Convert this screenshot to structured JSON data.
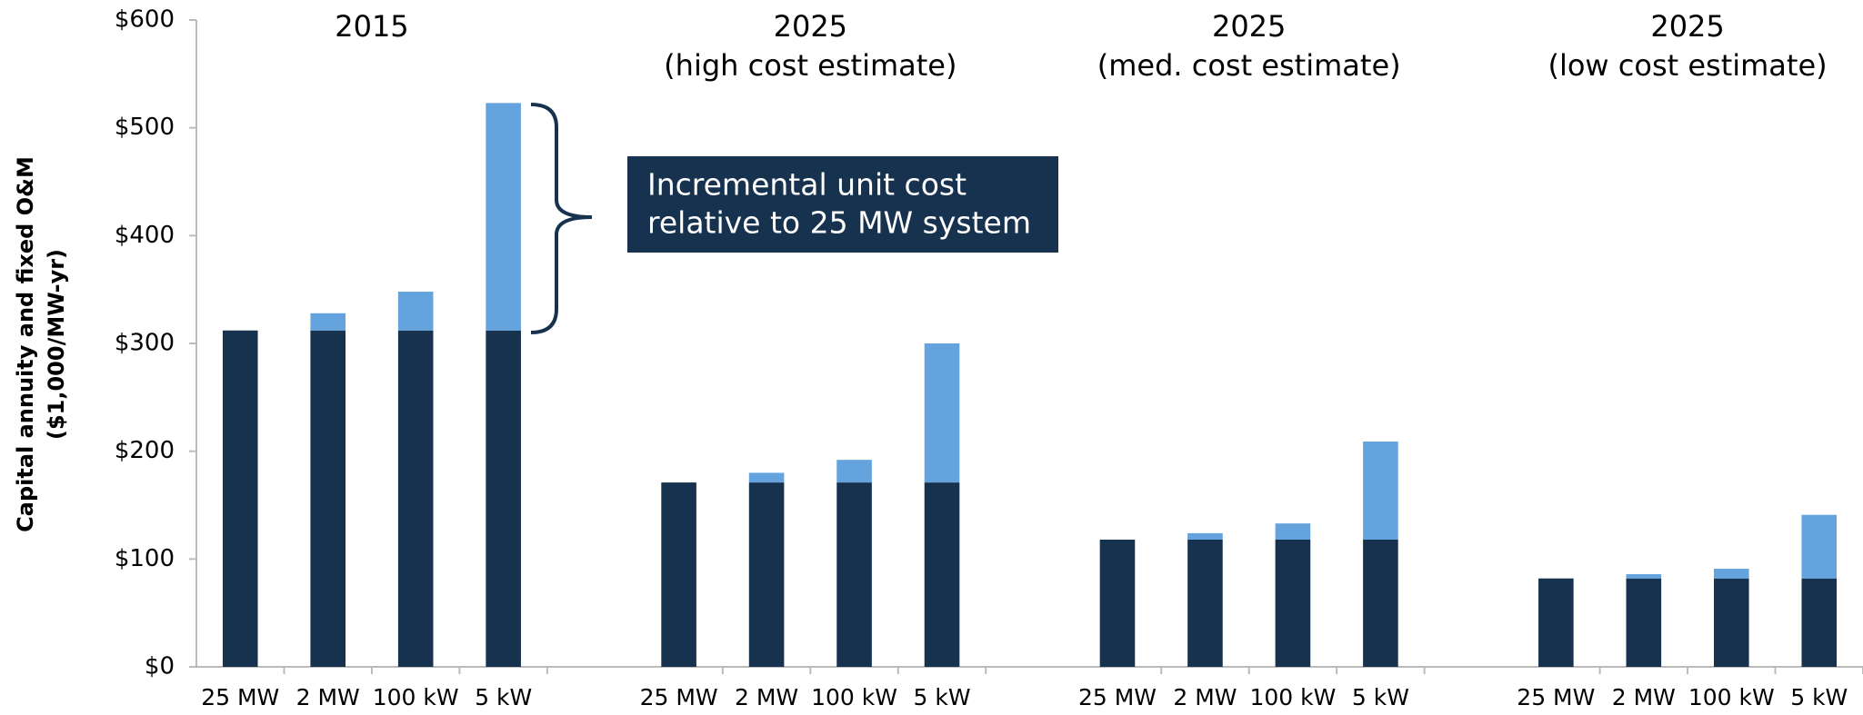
{
  "chart_data": {
    "type": "stacked_bar",
    "ylabel": [
      "Capital annuity and fixed O&M",
      "($1,000/MW-yr)"
    ],
    "groups": [
      {
        "title": [
          "2015"
        ],
        "categories": [
          "25 MW",
          "2 MW",
          "100 kW",
          "5 kW"
        ]
      },
      {
        "title": [
          "2025",
          "(high cost estimate)"
        ],
        "categories": [
          "25 MW",
          "2 MW",
          "100 kW",
          "5 kW"
        ]
      },
      {
        "title": [
          "2025",
          "(med. cost estimate)"
        ],
        "categories": [
          "25 MW",
          "2 MW",
          "100 kW",
          "5 kW"
        ]
      },
      {
        "title": [
          "2025",
          "(low cost estimate)"
        ],
        "categories": [
          "25 MW",
          "2 MW",
          "100 kW",
          "5 kW"
        ]
      }
    ],
    "series": [
      {
        "color": "#17324f",
        "values": [
          312,
          312,
          312,
          312,
          171,
          171,
          171,
          171,
          118,
          118,
          118,
          118,
          82,
          82,
          82,
          82
        ]
      },
      {
        "color": "#64a3de",
        "values": [
          0,
          16,
          36,
          211,
          0,
          9,
          21,
          129,
          0,
          6,
          15,
          91,
          0,
          4,
          9,
          59
        ]
      }
    ],
    "ylim": [
      0,
      600
    ],
    "yticks": [
      {
        "value": 0,
        "label": "$0"
      },
      {
        "value": 100,
        "label": "$100"
      },
      {
        "value": 200,
        "label": "$200"
      },
      {
        "value": 300,
        "label": "$300"
      },
      {
        "value": 400,
        "label": "$400"
      },
      {
        "value": 500,
        "label": "$500"
      },
      {
        "value": 600,
        "label": "$600"
      }
    ],
    "annotation": [
      "Incremental unit cost",
      "relative to 25 MW system"
    ]
  }
}
